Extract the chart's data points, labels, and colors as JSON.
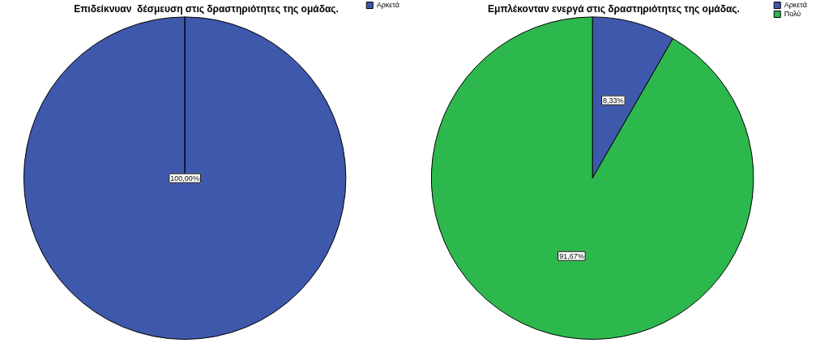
{
  "chart_data": [
    {
      "type": "pie",
      "title": "Επιδείκνυαν  δέσμευση στις δραστηριότητες της ομάδας.",
      "categories": [
        "Αρκετά"
      ],
      "values": [
        100
      ],
      "colors": [
        "#3e58ac"
      ],
      "value_labels": [
        "100,00%"
      ],
      "legend": "top right"
    },
    {
      "type": "pie",
      "title": "Εμπλέκονταν ενεργά στις δραστηριότητες της ομάδας.",
      "categories": [
        "Αρκετά",
        "Πολύ"
      ],
      "values": [
        8.33,
        91.67
      ],
      "colors": [
        "#3e58ac",
        "#2db84d"
      ],
      "value_labels": [
        "8,33%",
        "91,67%"
      ],
      "legend": "top right"
    }
  ]
}
